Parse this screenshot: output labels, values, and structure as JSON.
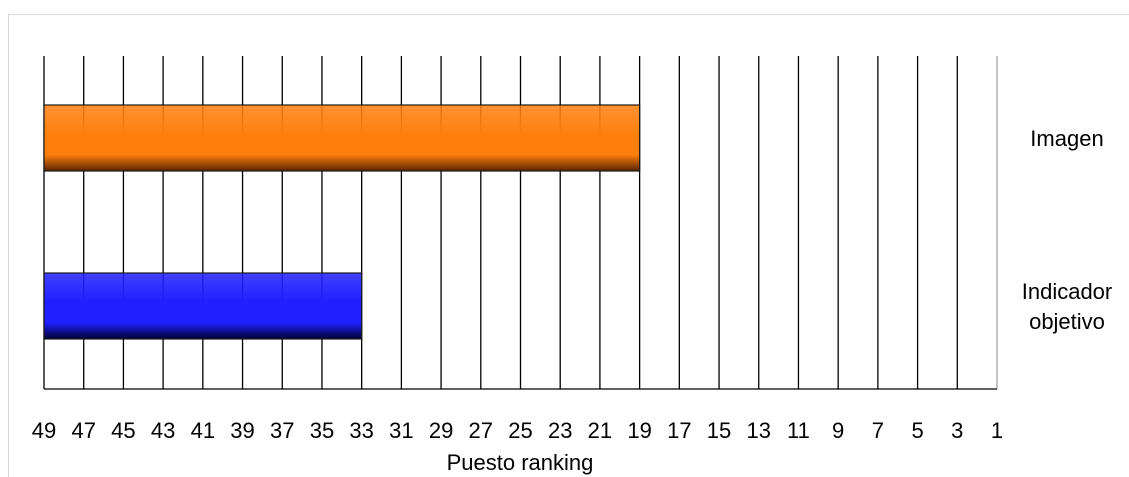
{
  "chart_data": {
    "type": "bar",
    "orientation": "horizontal",
    "categories": [
      "Imagen",
      "Indicador objetivo"
    ],
    "category_labels": [
      [
        "Imagen"
      ],
      [
        "Indicador",
        "objetivo"
      ]
    ],
    "values": [
      19,
      33
    ],
    "xlabel": "Puesto ranking",
    "xlim": [
      49,
      1
    ],
    "x_reversed": true,
    "x_ticks": [
      49,
      47,
      45,
      43,
      41,
      39,
      37,
      35,
      33,
      31,
      29,
      27,
      25,
      23,
      21,
      19,
      17,
      15,
      13,
      11,
      9,
      7,
      5,
      3,
      1
    ],
    "grid": "vertical",
    "category_axis_position": "right",
    "bar_colors": [
      "#ff7f0e",
      "#1f1fff"
    ],
    "bar_dark_colors": [
      "#5a2400",
      "#00002e"
    ]
  }
}
